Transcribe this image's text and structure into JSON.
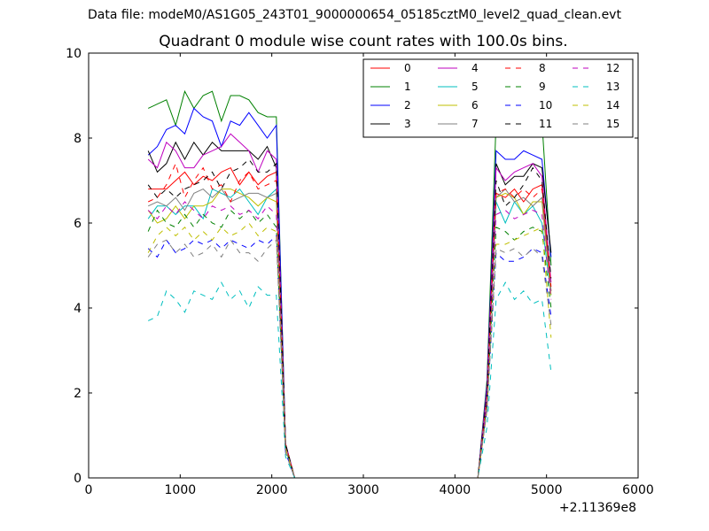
{
  "header": {
    "file_label": "Data file: modeM0/AS1G05_243T01_9000000654_05185cztM0_level2_quad_clean.evt"
  },
  "chart_data": {
    "type": "line",
    "title": "Quadrant 0 module wise count rates with 100.0s bins.",
    "xlabel": "",
    "ylabel": "",
    "x_offset_label": "+2.11369e8",
    "xlim": [
      0,
      6000
    ],
    "ylim": [
      0,
      10
    ],
    "x_ticks": [
      0,
      1000,
      2000,
      3000,
      4000,
      5000,
      6000
    ],
    "y_ticks": [
      0,
      2,
      4,
      6,
      8,
      10
    ],
    "grid": false,
    "legend_position": "top-right",
    "legend_columns": 4,
    "x": [
      650,
      750,
      850,
      950,
      1050,
      1150,
      1250,
      1350,
      1450,
      1550,
      1650,
      1750,
      1850,
      1950,
      2050,
      2150,
      2250,
      2350,
      2450,
      2550,
      2650,
      2750,
      2850,
      2950,
      3050,
      3150,
      3250,
      3350,
      3450,
      3550,
      3650,
      3750,
      3850,
      3950,
      4050,
      4150,
      4250,
      4350,
      4450,
      4550,
      4650,
      4750,
      4850,
      4950,
      5050
    ],
    "series": [
      {
        "name": "0",
        "color": "#ff0000",
        "dash": false,
        "values": [
          6.8,
          6.8,
          6.8,
          7.0,
          7.2,
          6.9,
          7.1,
          7.0,
          7.2,
          7.3,
          6.9,
          7.2,
          6.9,
          7.1,
          7.2,
          0.8,
          0,
          0,
          0,
          0,
          0,
          0,
          0,
          0,
          0,
          0,
          0,
          0,
          0,
          0,
          0,
          0,
          0,
          0,
          0,
          0,
          0,
          2.0,
          6.7,
          6.6,
          6.8,
          6.5,
          6.8,
          6.9,
          4.4
        ]
      },
      {
        "name": "1",
        "color": "#008000",
        "dash": false,
        "values": [
          8.7,
          8.8,
          8.9,
          8.3,
          9.1,
          8.7,
          9.0,
          9.1,
          8.4,
          9.0,
          9.0,
          8.9,
          8.6,
          8.5,
          8.5,
          0.8,
          0,
          0,
          0,
          0,
          0,
          0,
          0,
          0,
          0,
          0,
          0,
          0,
          0,
          0,
          0,
          0,
          0,
          0,
          0,
          0,
          0,
          2.3,
          8.4,
          8.3,
          8.4,
          8.2,
          8.3,
          8.4,
          5.0
        ]
      },
      {
        "name": "2",
        "color": "#0000ff",
        "dash": false,
        "values": [
          7.6,
          7.8,
          8.2,
          8.3,
          8.1,
          8.7,
          8.5,
          8.4,
          7.8,
          8.4,
          8.3,
          8.6,
          8.3,
          8.0,
          8.3,
          0.8,
          0,
          0,
          0,
          0,
          0,
          0,
          0,
          0,
          0,
          0,
          0,
          0,
          0,
          0,
          0,
          0,
          0,
          0,
          0,
          0,
          0,
          2.2,
          7.7,
          7.5,
          7.5,
          7.7,
          7.6,
          7.5,
          5.2
        ]
      },
      {
        "name": "3",
        "color": "#000000",
        "dash": false,
        "values": [
          7.7,
          7.2,
          7.4,
          7.9,
          7.5,
          7.9,
          7.6,
          7.9,
          7.7,
          7.7,
          7.7,
          7.7,
          7.5,
          7.8,
          7.3,
          0.8,
          0,
          0,
          0,
          0,
          0,
          0,
          0,
          0,
          0,
          0,
          0,
          0,
          0,
          0,
          0,
          0,
          0,
          0,
          0,
          0,
          0,
          2.1,
          7.4,
          6.9,
          7.1,
          7.1,
          7.4,
          7.3,
          5.3
        ]
      },
      {
        "name": "4",
        "color": "#bf00bf",
        "dash": false,
        "values": [
          7.5,
          7.3,
          7.9,
          7.7,
          7.3,
          7.3,
          7.6,
          7.7,
          7.8,
          8.1,
          7.9,
          7.7,
          7.2,
          7.7,
          7.5,
          0.8,
          0,
          0,
          0,
          0,
          0,
          0,
          0,
          0,
          0,
          0,
          0,
          0,
          0,
          0,
          0,
          0,
          0,
          0,
          0,
          0,
          0,
          2.1,
          7.3,
          7.0,
          7.2,
          7.3,
          7.4,
          7.1,
          4.6
        ]
      },
      {
        "name": "5",
        "color": "#00bfbf",
        "dash": false,
        "values": [
          6.1,
          6.4,
          6.4,
          6.2,
          6.4,
          6.4,
          6.1,
          6.8,
          6.7,
          6.6,
          6.8,
          6.5,
          6.2,
          6.6,
          6.8,
          0.7,
          0,
          0,
          0,
          0,
          0,
          0,
          0,
          0,
          0,
          0,
          0,
          0,
          0,
          0,
          0,
          0,
          0,
          0,
          0,
          0,
          0,
          1.9,
          6.5,
          6.0,
          6.5,
          6.2,
          6.4,
          6.0,
          4.3
        ]
      },
      {
        "name": "6",
        "color": "#bfbf00",
        "dash": false,
        "values": [
          6.3,
          6.0,
          6.1,
          6.4,
          6.1,
          6.4,
          6.4,
          6.5,
          6.8,
          6.8,
          6.7,
          6.6,
          6.4,
          6.6,
          6.5,
          0.7,
          0,
          0,
          0,
          0,
          0,
          0,
          0,
          0,
          0,
          0,
          0,
          0,
          0,
          0,
          0,
          0,
          0,
          0,
          0,
          0,
          0,
          1.9,
          6.6,
          6.7,
          6.6,
          6.2,
          6.5,
          6.5,
          4.3
        ]
      },
      {
        "name": "7",
        "color": "#808080",
        "dash": false,
        "values": [
          6.4,
          6.5,
          6.4,
          6.6,
          6.3,
          6.7,
          6.8,
          6.6,
          6.8,
          6.5,
          6.6,
          6.7,
          6.7,
          6.6,
          6.7,
          0.7,
          0,
          0,
          0,
          0,
          0,
          0,
          0,
          0,
          0,
          0,
          0,
          0,
          0,
          0,
          0,
          0,
          0,
          0,
          0,
          0,
          0,
          1.8,
          6.6,
          6.8,
          6.5,
          6.6,
          6.4,
          6.6,
          4.4
        ]
      },
      {
        "name": "8",
        "color": "#ff0000",
        "dash": true,
        "values": [
          6.5,
          6.6,
          6.9,
          7.4,
          6.6,
          7.0,
          7.3,
          6.8,
          6.9,
          6.5,
          7.0,
          7.2,
          6.8,
          6.9,
          7.0,
          0.8,
          0,
          0,
          0,
          0,
          0,
          0,
          0,
          0,
          0,
          0,
          0,
          0,
          0,
          0,
          0,
          0,
          0,
          0,
          0,
          0,
          0,
          1.9,
          6.7,
          6.8,
          6.6,
          6.8,
          6.6,
          6.8,
          4.5
        ]
      },
      {
        "name": "9",
        "color": "#008000",
        "dash": true,
        "values": [
          5.8,
          6.3,
          6.0,
          5.9,
          6.2,
          5.9,
          6.2,
          6.0,
          5.9,
          6.3,
          6.1,
          6.3,
          6.0,
          6.2,
          5.9,
          0.7,
          0,
          0,
          0,
          0,
          0,
          0,
          0,
          0,
          0,
          0,
          0,
          0,
          0,
          0,
          0,
          0,
          0,
          0,
          0,
          0,
          0,
          1.7,
          5.9,
          5.8,
          5.6,
          5.8,
          5.9,
          5.8,
          4.0
        ]
      },
      {
        "name": "10",
        "color": "#0000ff",
        "dash": true,
        "values": [
          5.4,
          5.2,
          5.6,
          5.3,
          5.4,
          5.6,
          5.5,
          5.6,
          5.4,
          5.6,
          5.5,
          5.4,
          5.6,
          5.5,
          5.7,
          0.6,
          0,
          0,
          0,
          0,
          0,
          0,
          0,
          0,
          0,
          0,
          0,
          0,
          0,
          0,
          0,
          0,
          0,
          0,
          0,
          0,
          0,
          1.6,
          5.3,
          5.1,
          5.1,
          5.2,
          5.4,
          5.3,
          3.8
        ]
      },
      {
        "name": "11",
        "color": "#000000",
        "dash": true,
        "values": [
          6.9,
          6.6,
          6.8,
          6.6,
          6.8,
          6.9,
          7.0,
          7.2,
          6.8,
          7.2,
          7.3,
          7.5,
          7.2,
          7.2,
          7.4,
          0.8,
          0,
          0,
          0,
          0,
          0,
          0,
          0,
          0,
          0,
          0,
          0,
          0,
          0,
          0,
          0,
          0,
          0,
          0,
          0,
          0,
          0,
          2.0,
          7.0,
          6.4,
          6.6,
          6.9,
          7.3,
          7.0,
          4.7
        ]
      },
      {
        "name": "12",
        "color": "#bf00bf",
        "dash": true,
        "values": [
          6.3,
          6.1,
          6.4,
          6.2,
          6.5,
          6.3,
          6.1,
          6.4,
          6.3,
          6.4,
          6.2,
          6.3,
          6.1,
          6.4,
          6.2,
          0.7,
          0,
          0,
          0,
          0,
          0,
          0,
          0,
          0,
          0,
          0,
          0,
          0,
          0,
          0,
          0,
          0,
          0,
          0,
          0,
          0,
          0,
          1.8,
          6.2,
          6.3,
          6.1,
          6.2,
          6.3,
          6.2,
          4.2
        ]
      },
      {
        "name": "13",
        "color": "#00bfbf",
        "dash": true,
        "values": [
          3.7,
          3.8,
          4.4,
          4.2,
          3.9,
          4.4,
          4.3,
          4.2,
          4.6,
          4.2,
          4.4,
          4.0,
          4.5,
          4.3,
          4.3,
          0.5,
          0,
          0,
          0,
          0,
          0,
          0,
          0,
          0,
          0,
          0,
          0,
          0,
          0,
          0,
          0,
          0,
          0,
          0,
          0,
          0,
          0,
          1.2,
          4.2,
          4.6,
          4.2,
          4.4,
          4.1,
          4.2,
          2.5
        ]
      },
      {
        "name": "14",
        "color": "#bfbf00",
        "dash": true,
        "values": [
          5.3,
          5.7,
          5.9,
          5.7,
          5.9,
          5.6,
          5.8,
          5.6,
          5.9,
          5.7,
          5.8,
          6.0,
          5.7,
          5.9,
          5.8,
          0.7,
          0,
          0,
          0,
          0,
          0,
          0,
          0,
          0,
          0,
          0,
          0,
          0,
          0,
          0,
          0,
          0,
          0,
          0,
          0,
          0,
          0,
          1.6,
          5.5,
          5.5,
          5.6,
          5.7,
          5.8,
          5.9,
          3.3
        ]
      },
      {
        "name": "15",
        "color": "#808080",
        "dash": true,
        "values": [
          5.2,
          5.5,
          5.6,
          5.3,
          5.5,
          5.2,
          5.3,
          5.5,
          5.2,
          5.6,
          5.3,
          5.3,
          5.1,
          5.4,
          5.6,
          0.6,
          0,
          0,
          0,
          0,
          0,
          0,
          0,
          0,
          0,
          0,
          0,
          0,
          0,
          0,
          0,
          0,
          0,
          0,
          0,
          0,
          0,
          1.6,
          5.4,
          5.3,
          5.4,
          5.2,
          5.4,
          5.2,
          3.6
        ]
      }
    ]
  }
}
